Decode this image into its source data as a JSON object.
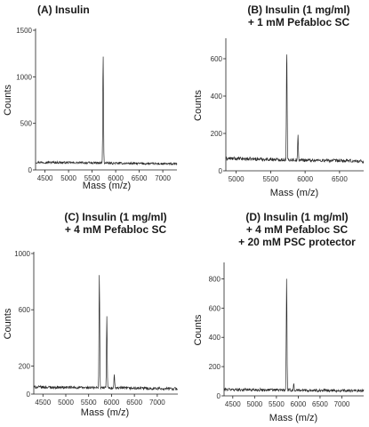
{
  "chart_data": [
    {
      "type": "line",
      "title_lines": [
        "(A) Insulin"
      ],
      "xlabel": "Mass (m/z)",
      "ylabel": "Counts",
      "xlim": [
        4300,
        7300
      ],
      "ylim": [
        0,
        1500
      ],
      "xticks": [
        4500,
        5000,
        5500,
        6000,
        6500,
        7000
      ],
      "yticks": [
        0,
        500,
        1000,
        1500
      ],
      "baseline": 75,
      "noise": 12,
      "peaks": [
        {
          "x": 5734,
          "y": 1260
        }
      ]
    },
    {
      "type": "line",
      "title_lines": [
        "(B) Insulin (1 mg/ml)",
        "+ 1 mM Pefabloc SC"
      ],
      "xlabel": "Mass (m/z)",
      "ylabel": "Counts",
      "xlim": [
        4850,
        6850
      ],
      "ylim": [
        0,
        700
      ],
      "xticks": [
        5000,
        5500,
        6000,
        6500
      ],
      "yticks": [
        0,
        200,
        400,
        600
      ],
      "baseline": 60,
      "noise": 9,
      "peaks": [
        {
          "x": 5734,
          "y": 660
        },
        {
          "x": 5897,
          "y": 190
        }
      ]
    },
    {
      "type": "line",
      "title_lines": [
        "(C) Insulin (1 mg/ml)",
        "+ 4 mM Pefabloc SC"
      ],
      "xlabel": "Mass (m/z)",
      "ylabel": "Counts",
      "xlim": [
        4300,
        7450
      ],
      "ylim": [
        0,
        1000
      ],
      "xticks": [
        4500,
        5000,
        5500,
        6000,
        6500,
        7000
      ],
      "yticks": [
        0,
        200,
        600,
        1000
      ],
      "baseline": 45,
      "noise": 10,
      "peaks": [
        {
          "x": 5734,
          "y": 860
        },
        {
          "x": 5897,
          "y": 560
        },
        {
          "x": 6060,
          "y": 140
        }
      ]
    },
    {
      "type": "line",
      "title_lines": [
        "(D) Insulin (1 mg/ml)",
        "+ 4 mM Pefabloc SC",
        "+ 20 mM PSC protector"
      ],
      "xlabel": "Mass (m/z)",
      "ylabel": "Counts",
      "xlim": [
        4300,
        7500
      ],
      "ylim": [
        0,
        900
      ],
      "xticks": [
        4500,
        5000,
        5500,
        6000,
        6500,
        7000
      ],
      "yticks": [
        0,
        200,
        400,
        600,
        800
      ],
      "baseline": 40,
      "noise": 10,
      "peaks": [
        {
          "x": 5734,
          "y": 820
        },
        {
          "x": 5897,
          "y": 80
        }
      ]
    }
  ]
}
